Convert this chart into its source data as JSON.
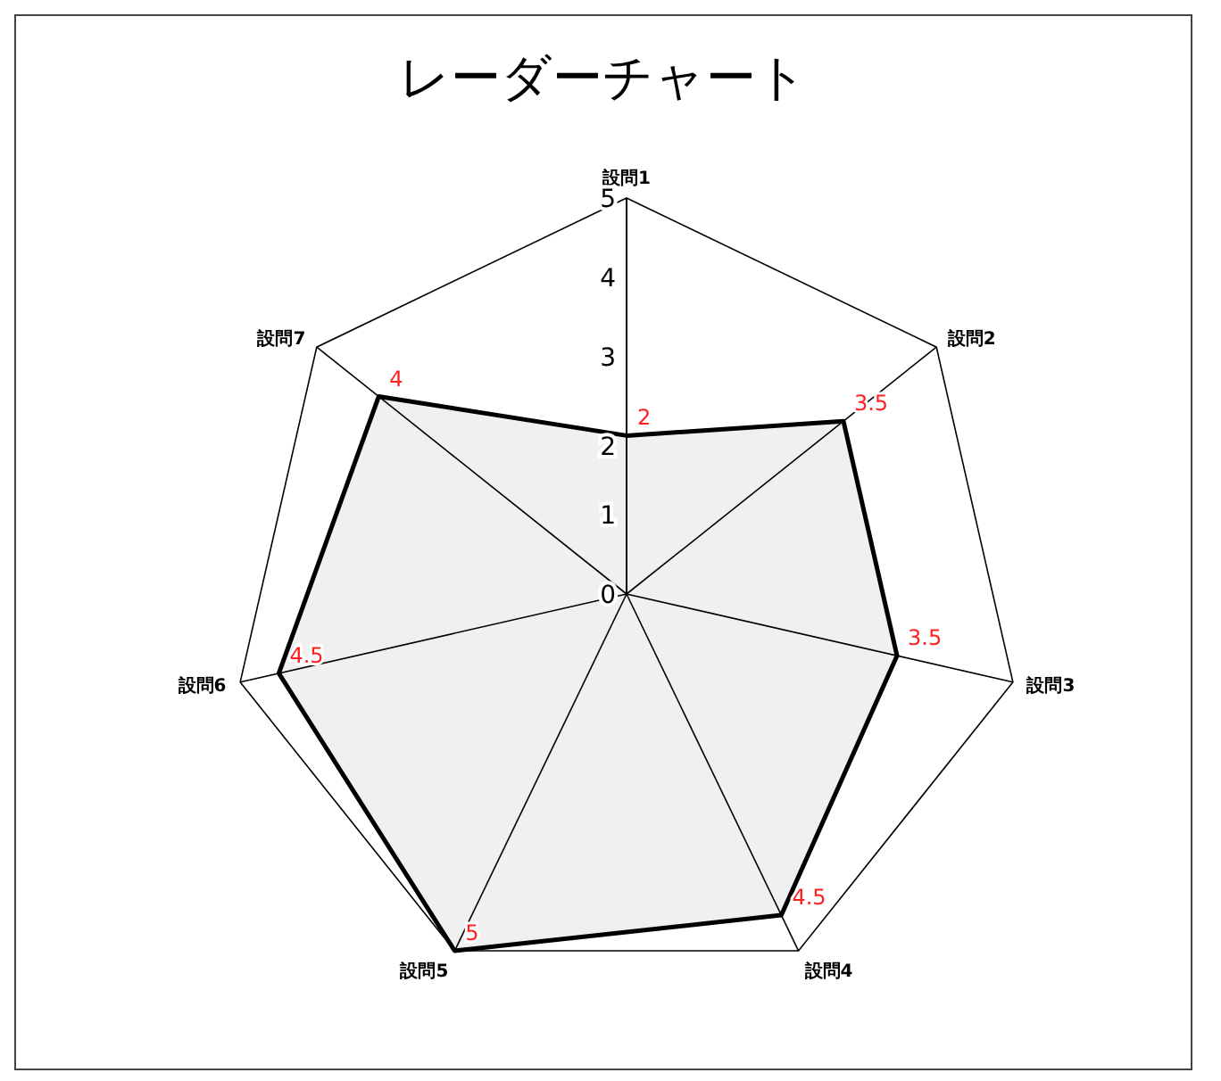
{
  "chart_data": {
    "type": "radar",
    "title": "レーダーチャート",
    "categories": [
      "設問1",
      "設問2",
      "設問3",
      "設問4",
      "設問5",
      "設問6",
      "設問7"
    ],
    "series": [
      {
        "color": "#000000",
        "values": [
          2,
          3.5,
          3.5,
          4.5,
          5,
          4.5,
          4
        ]
      }
    ],
    "ylim": [
      0,
      5
    ],
    "yticks": [
      0,
      1,
      2,
      3,
      4,
      5
    ],
    "grid": true,
    "data_labels": true,
    "marker": "none"
  }
}
